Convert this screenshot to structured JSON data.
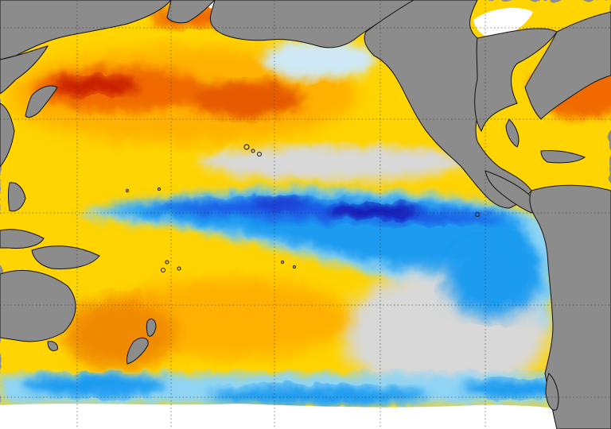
{
  "map": {
    "region": "Pacific Ocean",
    "layer": "sea-surface-temperature-anomaly",
    "colors": {
      "land": "#8c8c8c",
      "coastline": "#111111",
      "sea_ice": "#ffffff",
      "near_zero": "#d8d8d8",
      "warm_weak": "#ffe000",
      "warm_moderate": "#ffb000",
      "warm_strong": "#f06a00",
      "warm_extreme": "#c81e00",
      "cool_weak": "#8fd4f5",
      "cool_moderate": "#1e9bf0",
      "cool_strong": "#1a5ae6",
      "cool_extreme": "#1616b4"
    },
    "features": [
      "cold-tongue-equatorial-eastern-pacific",
      "warm-north-pacific-blob",
      "cool-southern-ocean-band",
      "sea-ice-antarctic",
      "graticule-dotted"
    ]
  }
}
